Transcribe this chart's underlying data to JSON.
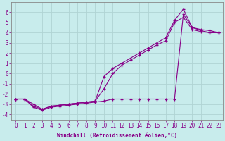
{
  "xlabel": "Windchill (Refroidissement éolien,°C)",
  "background_color": "#c8ecec",
  "line_color": "#880088",
  "grid_color": "#b0d4d4",
  "x_values": [
    0,
    1,
    2,
    3,
    4,
    5,
    6,
    7,
    8,
    9,
    10,
    11,
    12,
    13,
    14,
    15,
    16,
    17,
    18,
    19,
    20,
    21,
    22,
    23
  ],
  "y_line1": [
    -2.5,
    -2.5,
    -3.3,
    -3.6,
    -3.3,
    -3.2,
    -3.1,
    -3.0,
    -2.9,
    -2.8,
    -2.7,
    -2.5,
    -2.5,
    -2.5,
    -2.5,
    -2.5,
    -2.5,
    -2.5,
    -2.5,
    5.8,
    4.5,
    4.2,
    4.0,
    4.0
  ],
  "y_line2": [
    -2.5,
    -2.5,
    -3.2,
    -3.5,
    -3.2,
    -3.1,
    -3.0,
    -2.9,
    -2.8,
    -2.7,
    -0.3,
    0.5,
    1.0,
    1.5,
    2.0,
    2.5,
    3.0,
    3.5,
    5.2,
    6.3,
    4.5,
    4.3,
    4.2,
    4.0
  ],
  "y_line3": [
    -2.5,
    -2.5,
    -3.0,
    -3.5,
    -3.2,
    -3.1,
    -3.0,
    -2.9,
    -2.8,
    -2.7,
    -1.5,
    0.0,
    0.8,
    1.3,
    1.8,
    2.3,
    2.8,
    3.2,
    5.0,
    5.5,
    4.3,
    4.1,
    4.0,
    4.0
  ],
  "ylim": [
    -4.5,
    7.0
  ],
  "xlim": [
    -0.5,
    23.5
  ],
  "yticks": [
    -4,
    -3,
    -2,
    -1,
    0,
    1,
    2,
    3,
    4,
    5,
    6
  ],
  "xticks": [
    0,
    1,
    2,
    3,
    4,
    5,
    6,
    7,
    8,
    9,
    10,
    11,
    12,
    13,
    14,
    15,
    16,
    17,
    18,
    19,
    20,
    21,
    22,
    23
  ],
  "tick_fontsize": 5.5,
  "xlabel_fontsize": 5.5
}
